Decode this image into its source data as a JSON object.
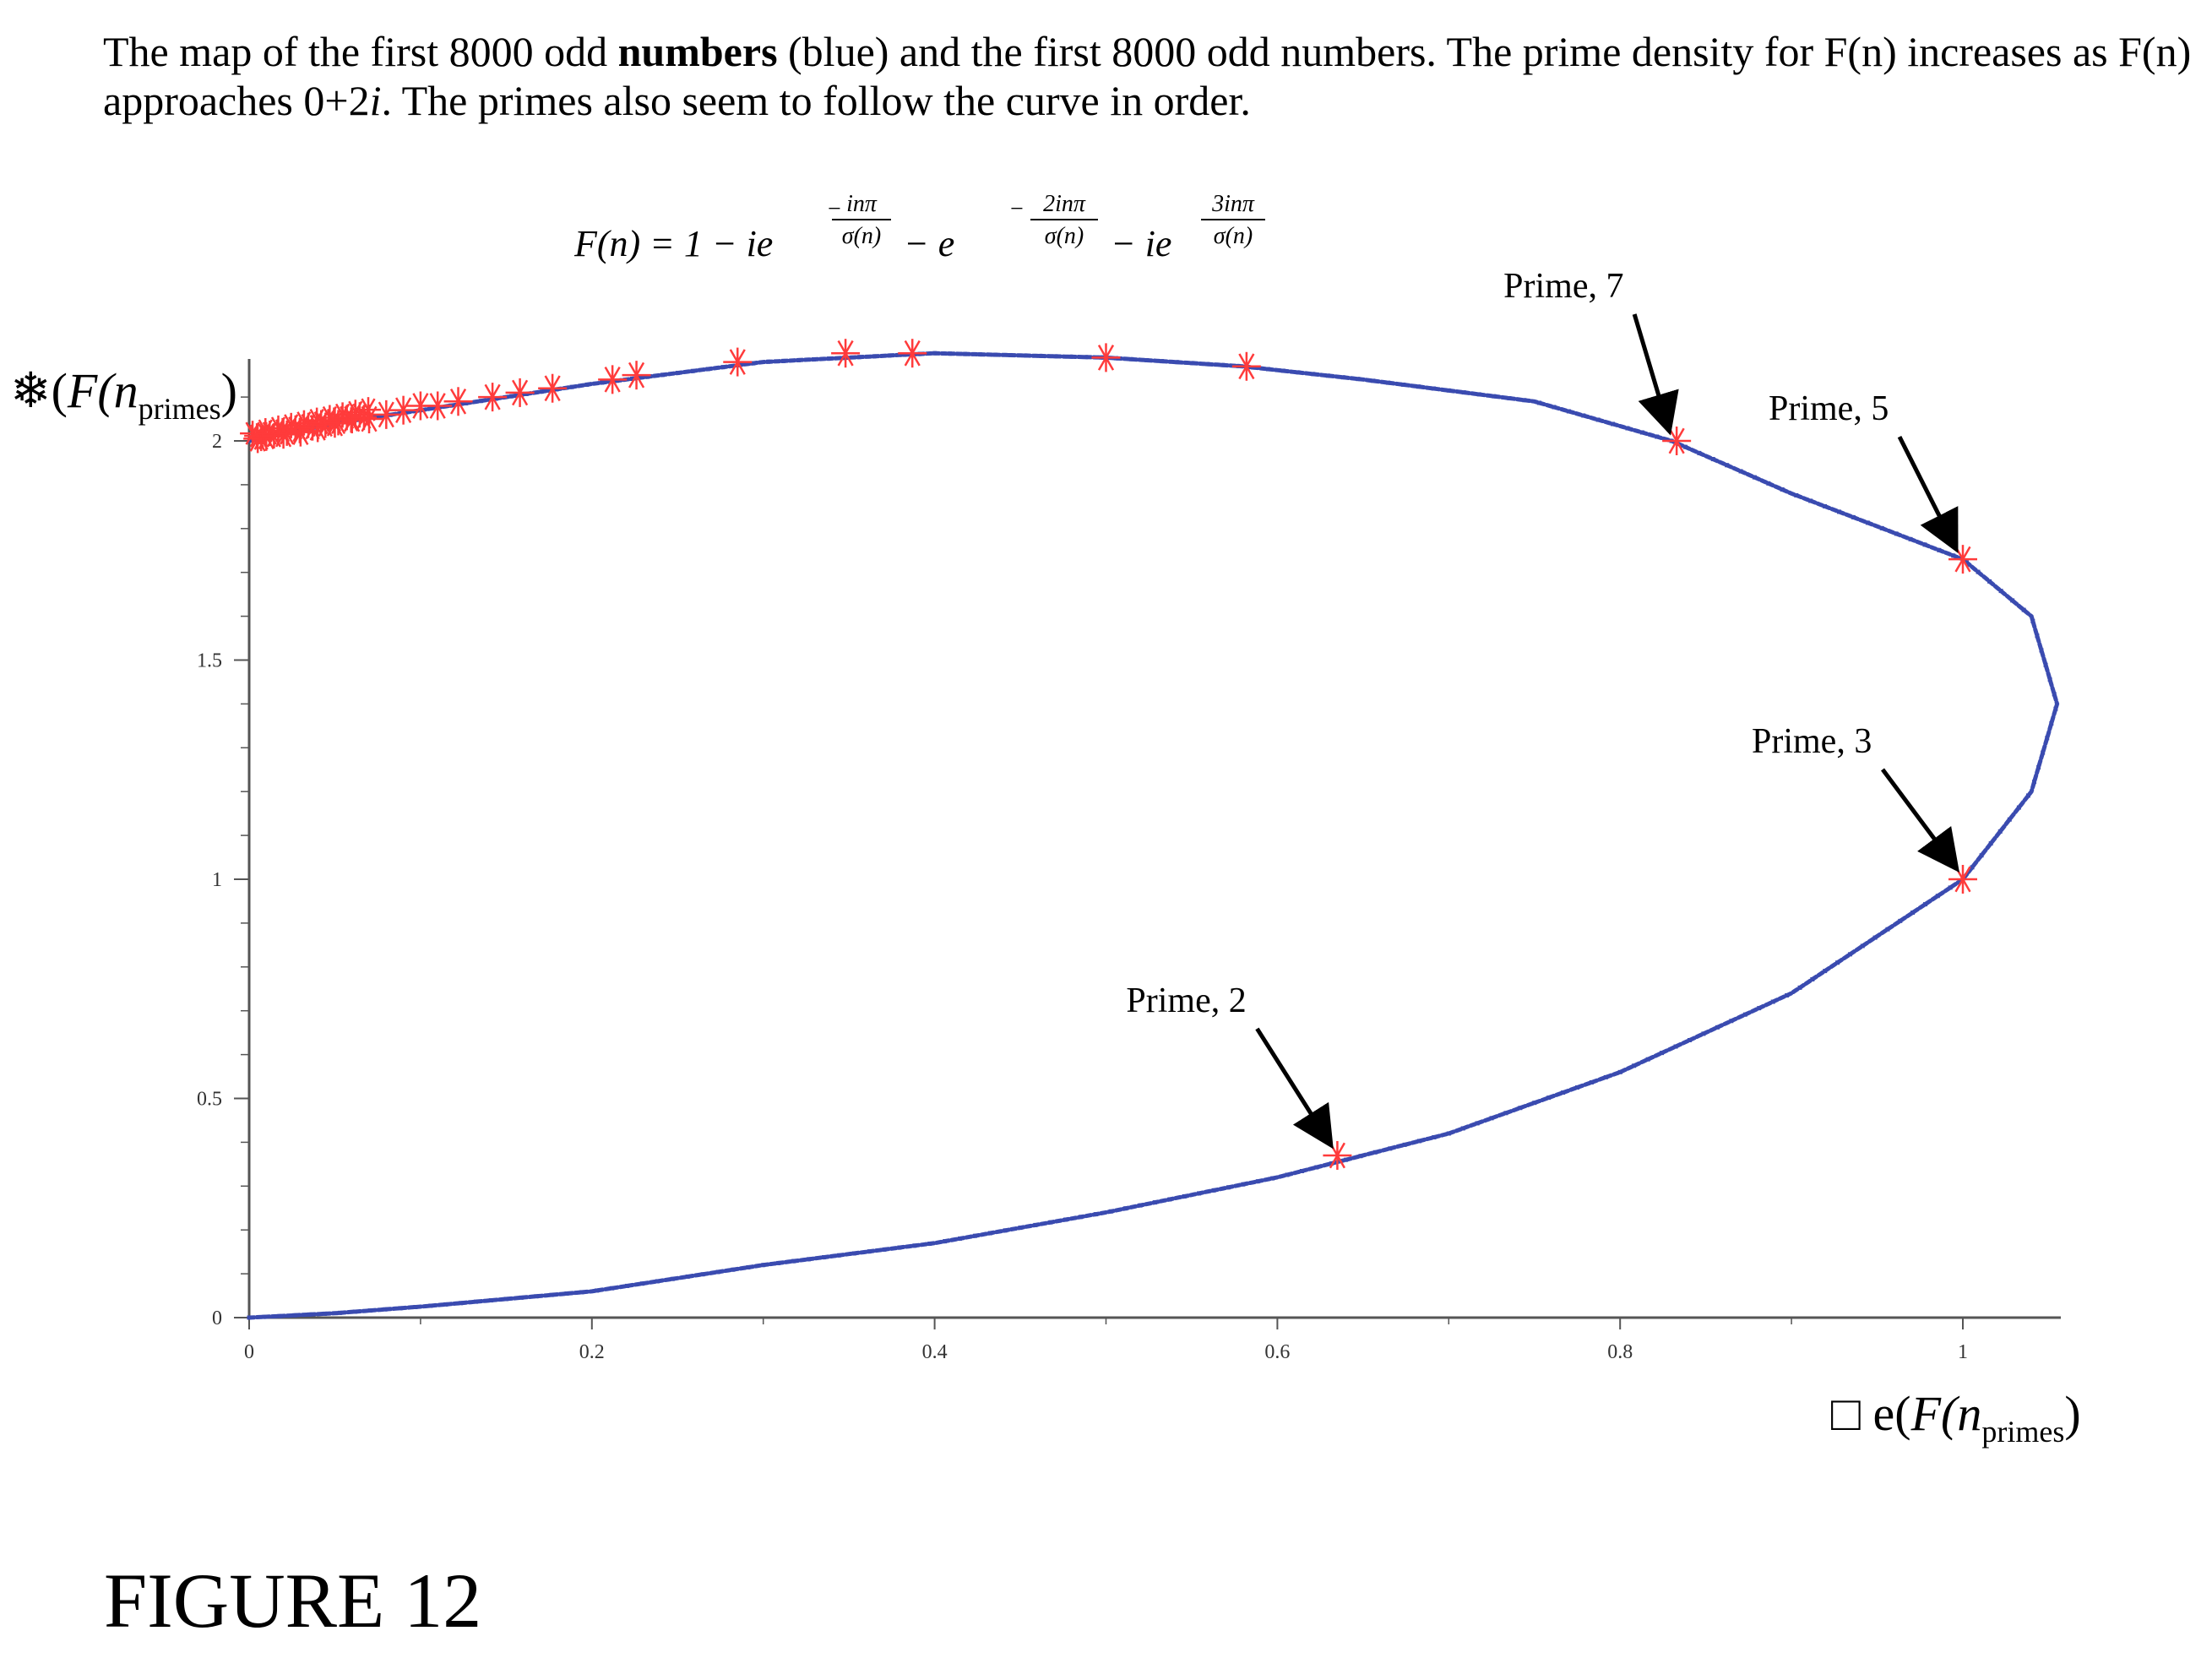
{
  "caption": {
    "part1": "The map of the first 8000 odd ",
    "bold": "numbers",
    "part2": " (blue) and the first 8000 odd numbers. The prime density for F(n) increases as F(n) approaches 0+2",
    "ivar": "i",
    "part3": ".  The primes also seem to follow the curve in order."
  },
  "formula": {
    "lhs": "F(n) = 1 − ie",
    "exp1_num": "inπ",
    "exp1_den": "σ(n)",
    "mid": "− e",
    "exp2_num": "2inπ",
    "exp2_den": "σ(n)",
    "end": "− ie",
    "exp3_num": "3inπ",
    "exp3_den": "σ(n)"
  },
  "figure_label": "FIGURE 12",
  "chart_data": {
    "type": "scatter",
    "xlabel": {
      "prefix": "□ e(",
      "italic": "F(n",
      "sub": "primes",
      "suffix": ")"
    },
    "ylabel": {
      "prefix": "❄(",
      "italic": "F(n",
      "sub": "primes",
      "suffix": ")"
    },
    "xlim": [
      0,
      1.06
    ],
    "ylim": [
      0,
      2.25
    ],
    "x_ticks": [
      {
        "value": 0,
        "label": "0"
      },
      {
        "value": 0.2,
        "label": "0.2"
      },
      {
        "value": 0.4,
        "label": "0.4"
      },
      {
        "value": 0.6,
        "label": "0.6"
      },
      {
        "value": 0.8,
        "label": "0.8"
      },
      {
        "value": 1,
        "label": "1"
      }
    ],
    "y_ticks": [
      {
        "value": 0,
        "label": "0"
      },
      {
        "value": 0.5,
        "label": "0.5"
      },
      {
        "value": 1,
        "label": "1"
      },
      {
        "value": 1.5,
        "label": "1.5"
      },
      {
        "value": 2,
        "label": "2"
      }
    ],
    "colors": {
      "odd_numbers": "#3a4bb0",
      "primes": "#ff3b3b",
      "axis": "#555555"
    },
    "series": [
      {
        "kind": "curve",
        "points": [
          [
            0,
            0
          ],
          [
            0.05,
            0.01
          ],
          [
            0.1,
            0.025
          ],
          [
            0.2,
            0.06
          ],
          [
            0.3,
            0.12
          ],
          [
            0.4,
            0.17
          ],
          [
            0.5,
            0.24
          ],
          [
            0.6,
            0.32
          ],
          [
            0.7,
            0.42
          ],
          [
            0.8,
            0.56
          ],
          [
            0.9,
            0.74
          ],
          [
            1.0,
            1.0
          ],
          [
            1.04,
            1.2
          ],
          [
            1.055,
            1.4
          ],
          [
            1.04,
            1.6
          ],
          [
            1.0,
            1.73
          ],
          [
            0.9,
            1.88
          ],
          [
            0.83,
            2.0
          ],
          [
            0.75,
            2.09
          ],
          [
            0.65,
            2.14
          ],
          [
            0.58,
            2.17
          ],
          [
            0.5,
            2.19
          ],
          [
            0.4,
            2.2
          ],
          [
            0.3,
            2.18
          ],
          [
            0.2,
            2.13
          ],
          [
            0.1,
            2.07
          ],
          [
            0.05,
            2.04
          ],
          [
            0,
            2.0
          ]
        ]
      },
      {
        "kind": "prime-markers",
        "points": [
          [
            0.635,
            0.37
          ],
          [
            1.0,
            1.0
          ],
          [
            1.0,
            1.73
          ],
          [
            0.833,
            2.0
          ],
          [
            0.582,
            2.17
          ],
          [
            0.5,
            2.19
          ],
          [
            0.387,
            2.2
          ],
          [
            0.348,
            2.2
          ],
          [
            0.285,
            2.18
          ],
          [
            0.226,
            2.15
          ],
          [
            0.212,
            2.14
          ],
          [
            0.177,
            2.12
          ],
          [
            0.158,
            2.11
          ],
          [
            0.142,
            2.1
          ],
          [
            0.122,
            2.09
          ],
          [
            0.11,
            2.08
          ],
          [
            0.1,
            2.08
          ],
          [
            0.09,
            2.07
          ],
          [
            0.08,
            2.06
          ],
          [
            0.07,
            2.05
          ],
          [
            0.06,
            2.05
          ],
          [
            0.05,
            2.04
          ],
          [
            0.04,
            2.03
          ],
          [
            0.03,
            2.02
          ],
          [
            0.02,
            2.015
          ],
          [
            0.01,
            2.01
          ],
          [
            0.005,
            2.005
          ]
        ]
      }
    ],
    "annotations": [
      {
        "text": "Prime, 2",
        "x": 0.635,
        "y": 0.37
      },
      {
        "text": "Prime, 3",
        "x": 1.0,
        "y": 1.0
      },
      {
        "text": "Prime, 5",
        "x": 1.0,
        "y": 1.73
      },
      {
        "text": "Prime, 7",
        "x": 0.833,
        "y": 2.0
      }
    ]
  }
}
